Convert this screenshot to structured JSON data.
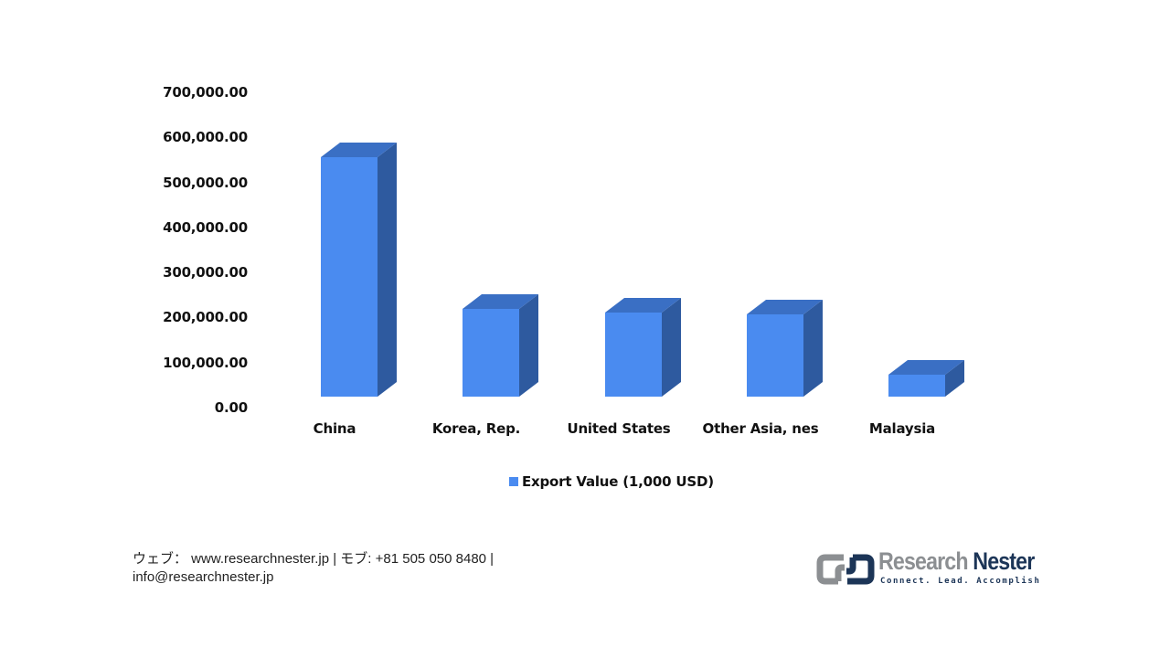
{
  "chart_data": {
    "type": "bar",
    "style": "3d-column",
    "title": "",
    "xlabel": "",
    "ylabel": "",
    "categories": [
      "China",
      "Korea, Rep.",
      "United States",
      "Other Asia, nes",
      "Malaysia"
    ],
    "series": [
      {
        "name": "Export Value (1,000 USD)",
        "color": "#4a8bf0",
        "values": [
          610000,
          225000,
          215000,
          211000,
          55000
        ]
      }
    ],
    "ylim": [
      0,
      700000
    ],
    "yticks": [
      "0.00",
      "100,000.00",
      "200,000.00",
      "300,000.00",
      "400,000.00",
      "500,000.00",
      "600,000.00",
      "700,000.00"
    ],
    "grid": false,
    "legend_position": "bottom"
  },
  "legend": {
    "label": "Export Value (1,000 USD)"
  },
  "footer": {
    "line1": "ウェブ：  www.researchnester.jp   | モブ: +81 505 050 8480 |",
    "line2": "info@researchnester.jp"
  },
  "logo": {
    "name_part1": "Research",
    "name_part2": "Nester",
    "tagline": "Connect. Lead. Accomplish"
  },
  "colors": {
    "bar_front": "#4a8bf0",
    "bar_top": "#3a6fc4",
    "bar_side": "#2e5a9f",
    "logo_gray": "#8c8f92",
    "logo_navy": "#1c3557"
  }
}
